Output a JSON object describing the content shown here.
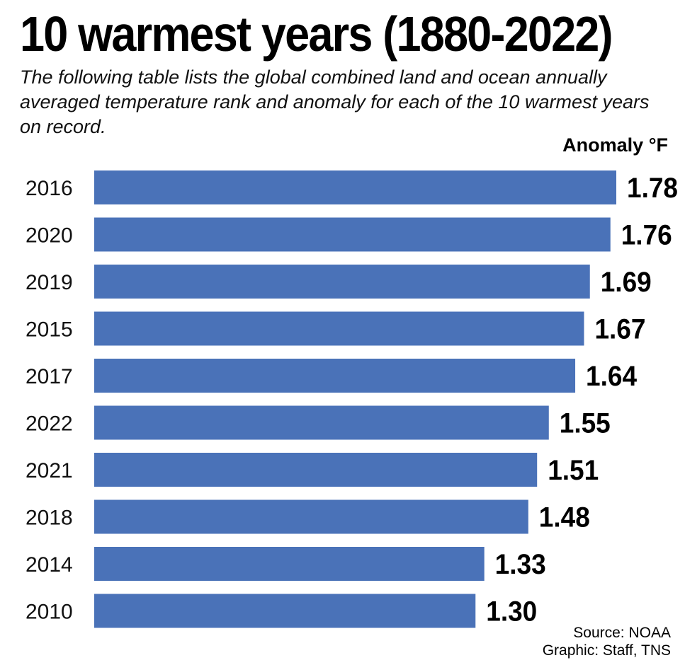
{
  "title": "10 warmest years (1880-2022)",
  "subtitle": "The following table lists the global combined land and ocean annually averaged temperature rank and anomaly for each of the 10 warmest years on record.",
  "footer": {
    "source": "Source: NOAA",
    "credit": "Graphic: Staff, TNS"
  },
  "colors": {
    "bar": "#4a72b8",
    "text": "#000000"
  },
  "chart_data": {
    "type": "bar",
    "orientation": "horizontal",
    "title": "10 warmest years (1880-2022)",
    "xlabel": "Anomaly °F",
    "ylabel": "",
    "categories": [
      "2016",
      "2020",
      "2019",
      "2015",
      "2017",
      "2022",
      "2021",
      "2018",
      "2014",
      "2010"
    ],
    "values": [
      1.78,
      1.76,
      1.69,
      1.67,
      1.64,
      1.55,
      1.51,
      1.48,
      1.33,
      1.3
    ],
    "value_labels": [
      "1.78",
      "1.76",
      "1.69",
      "1.67",
      "1.64",
      "1.55",
      "1.51",
      "1.48",
      "1.33",
      "1.30"
    ],
    "xlim": [
      0,
      1.78
    ],
    "grid": false,
    "legend": "none"
  }
}
